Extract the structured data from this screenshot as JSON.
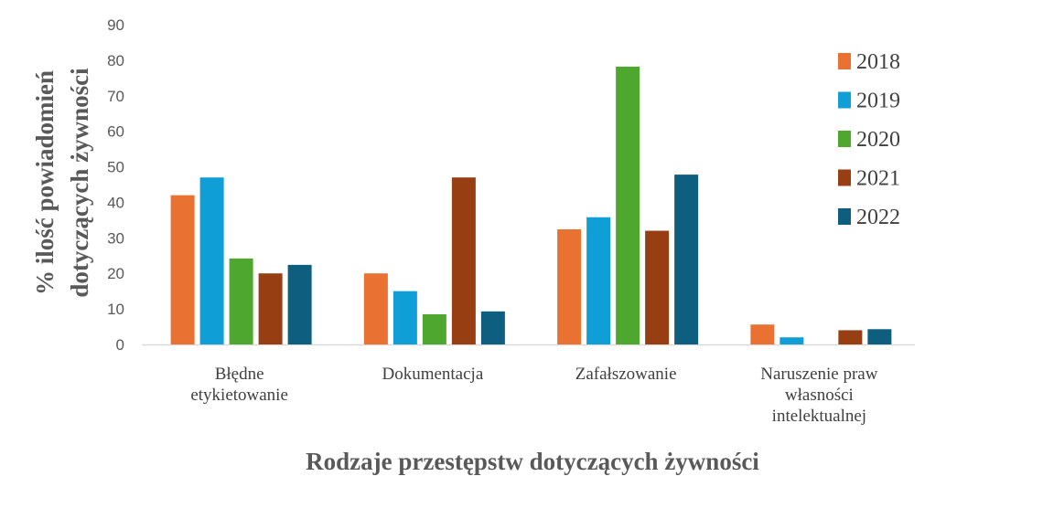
{
  "chart_data": {
    "type": "bar",
    "categories": [
      [
        "Błędne",
        "etykietowanie"
      ],
      [
        "Dokumentacja"
      ],
      [
        "Zafałszowanie"
      ],
      [
        "Naruszenie praw",
        "własności",
        "intelektualnej"
      ]
    ],
    "series": [
      {
        "name": "2018",
        "color": "#E97132",
        "values": [
          42,
          20,
          32.4,
          5.6
        ]
      },
      {
        "name": "2019",
        "color": "#0F9ED5",
        "values": [
          47,
          15,
          35.8,
          2
        ]
      },
      {
        "name": "2020",
        "color": "#4EA72E",
        "values": [
          24.2,
          8.5,
          78.2,
          0
        ]
      },
      {
        "name": "2021",
        "color": "#973E12",
        "values": [
          20,
          47,
          32,
          4
        ]
      },
      {
        "name": "2022",
        "color": "#0E5E80",
        "values": [
          22.4,
          9.3,
          47.8,
          4.3
        ]
      }
    ],
    "xlabel": "Rodzaje przestępstw dotyczących żywności",
    "ylabel": [
      "% ilość powiadomień",
      "dotyczących żywności"
    ],
    "ylim": [
      0,
      90
    ],
    "yticks": [
      0,
      10,
      20,
      30,
      40,
      50,
      60,
      70,
      80,
      90
    ],
    "grid": false,
    "legend": "right"
  }
}
